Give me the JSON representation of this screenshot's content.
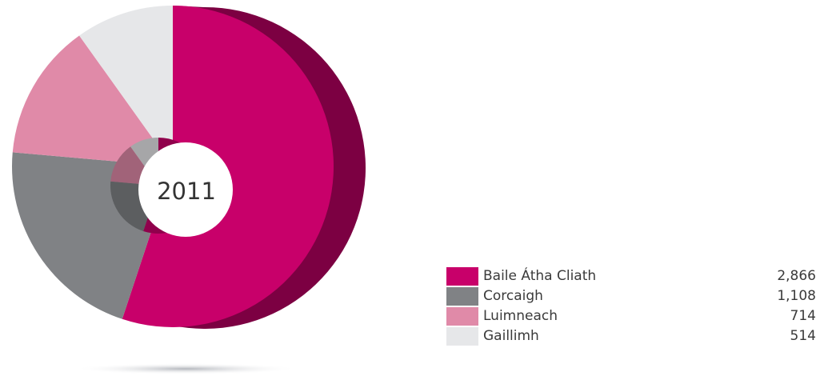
{
  "chart_data": {
    "type": "pie",
    "style": "3D donut",
    "title": "",
    "center_label": "2011",
    "categories": [
      "Baile Átha Cliath",
      "Corcaigh",
      "Luimneach",
      "Gaillimh"
    ],
    "values": [
      2866,
      1108,
      714,
      514
    ],
    "value_labels": [
      "2,866",
      "1,108",
      "714",
      "514"
    ],
    "colors": [
      "#c8006a",
      "#808285",
      "#e08aa8",
      "#e6e7e9"
    ],
    "legend_position": "bottom-right"
  }
}
